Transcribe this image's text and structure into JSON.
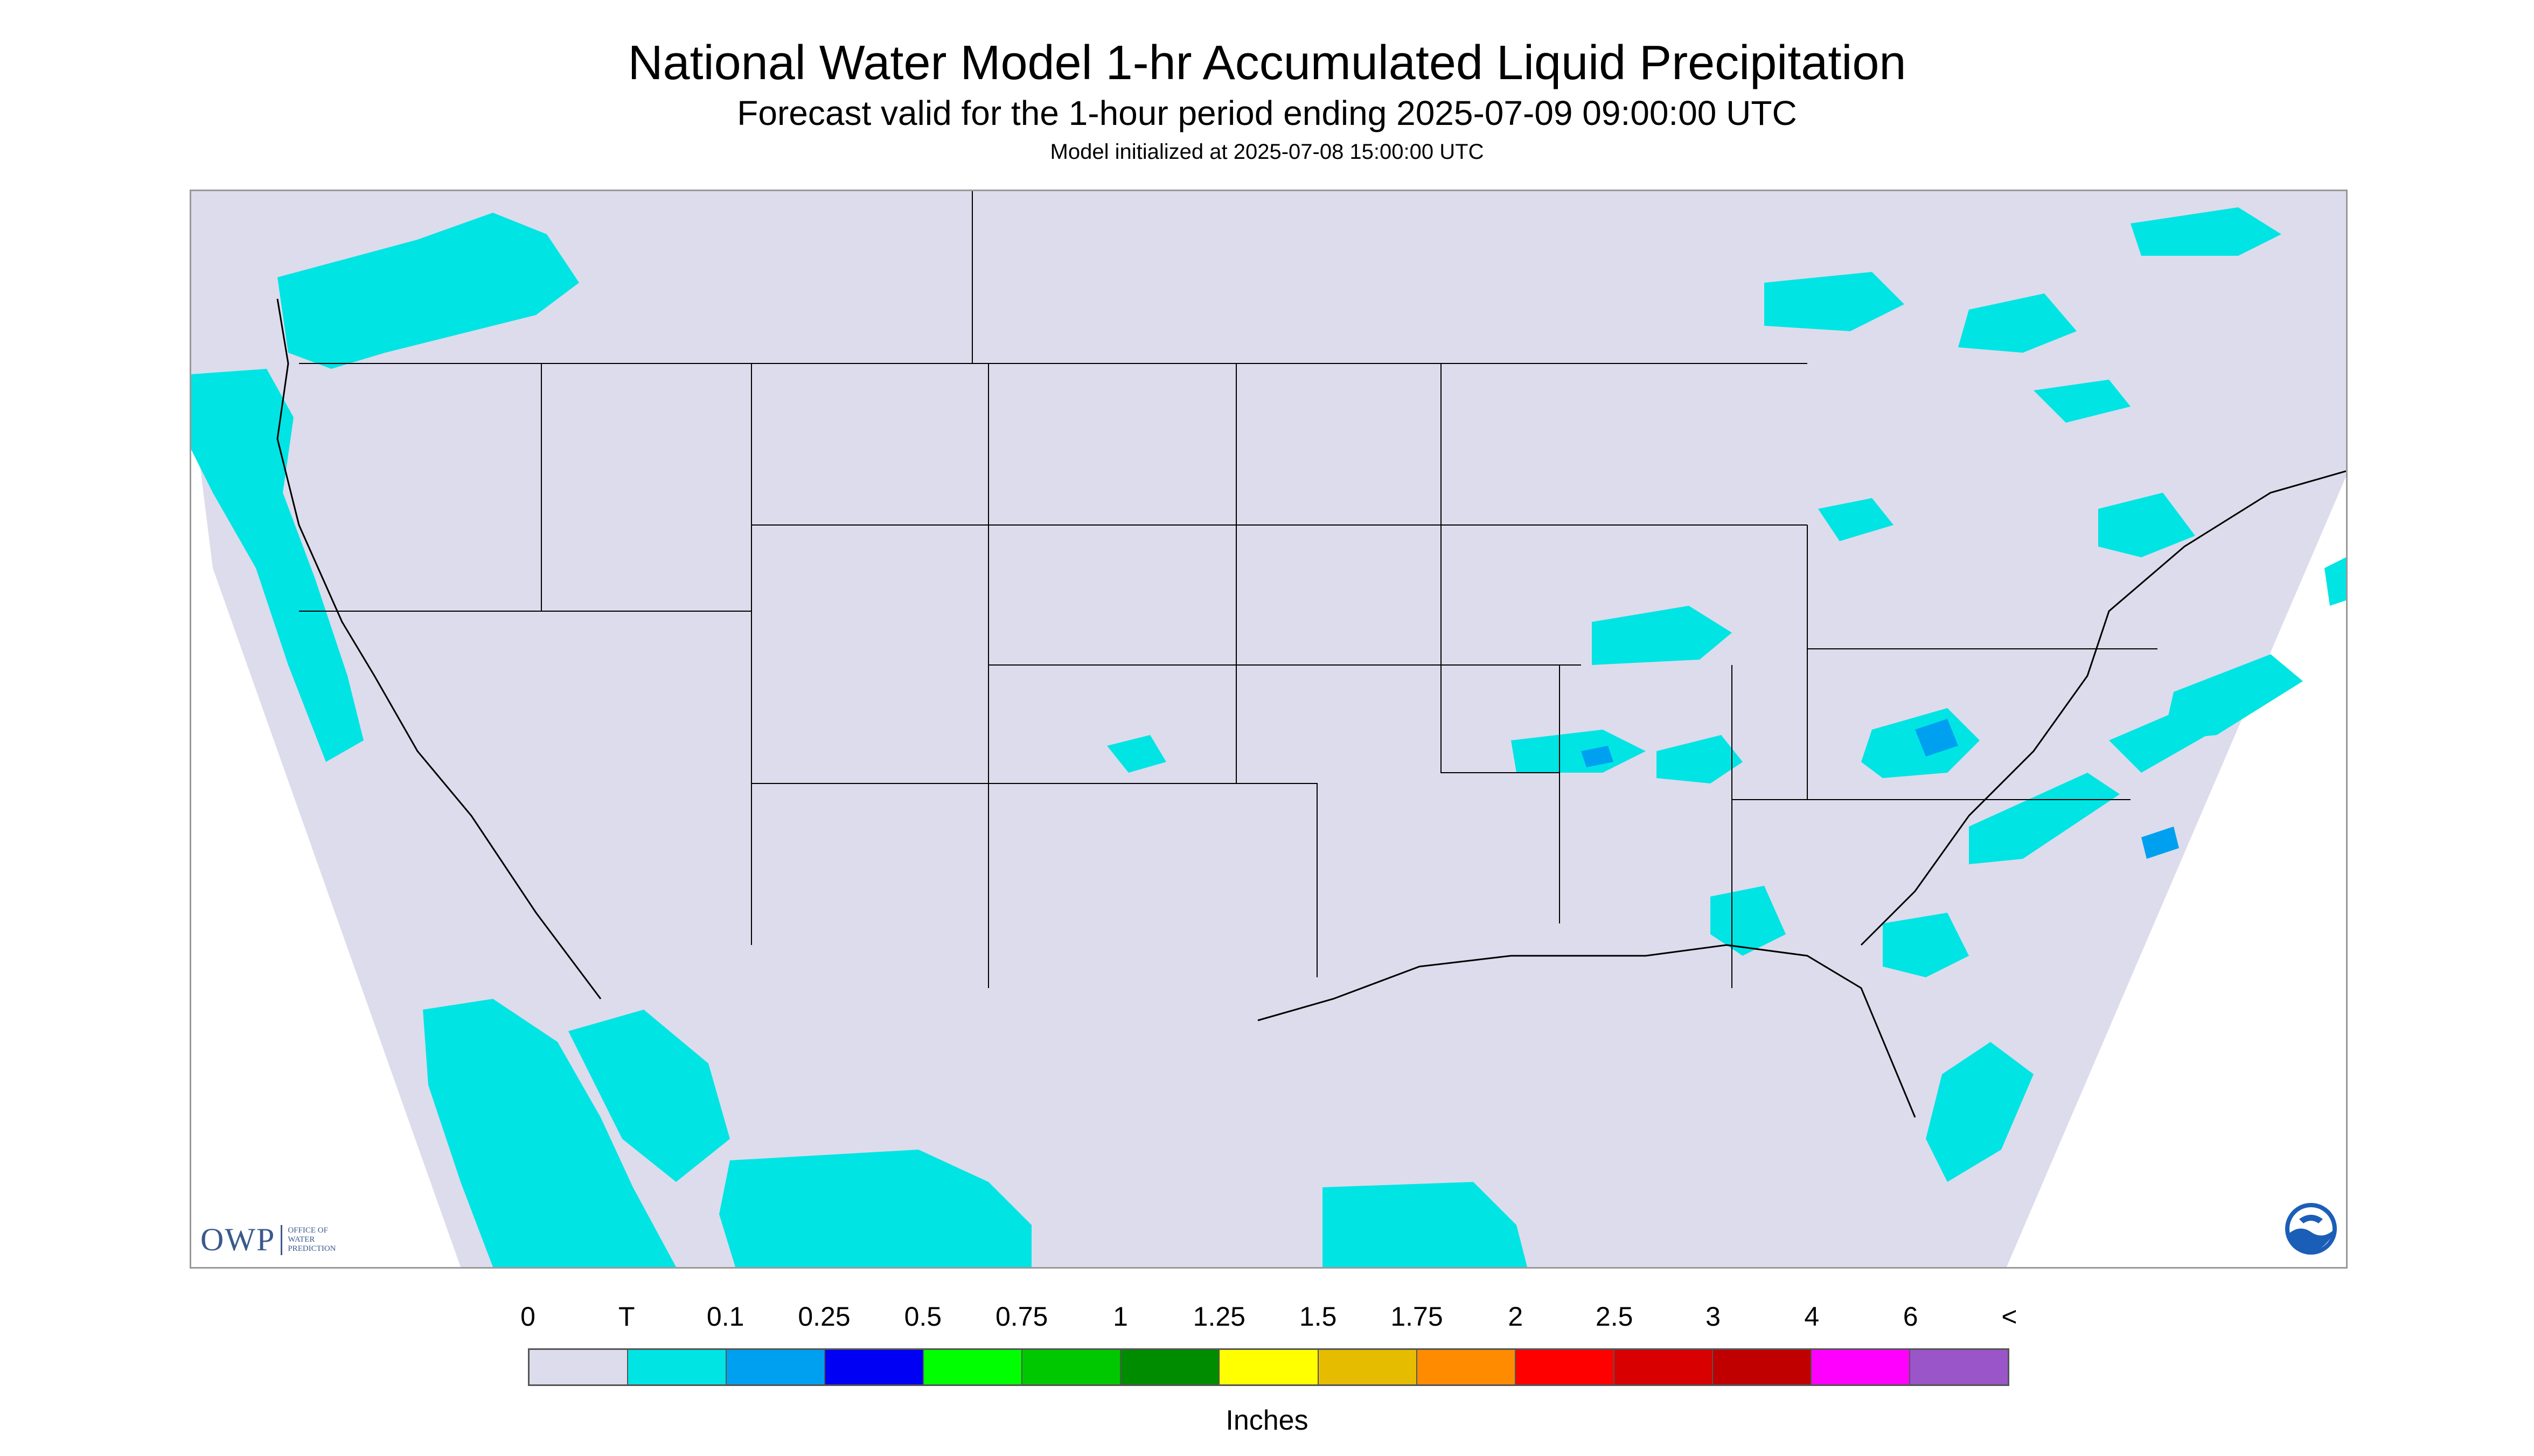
{
  "title": "National Water Model 1-hr Accumulated Liquid Precipitation",
  "subtitle": "Forecast valid for the 1-hour period ending 2025-07-09 09:00:00 UTC",
  "initialized": "Model initialized at 2025-07-08 15:00:00 UTC",
  "logo_owp": {
    "short": "OWP",
    "line1": "OFFICE OF",
    "line2": "WATER",
    "line3": "PREDICTION"
  },
  "colors": {
    "background_domain": "#dcdcec",
    "trace": "#00e4e4",
    "light": "#00a0f0",
    "boundary": "#000000"
  },
  "legend": {
    "units": "Inches",
    "labels": [
      "0",
      "T",
      "0.1",
      "0.25",
      "0.5",
      "0.75",
      "1",
      "1.25",
      "1.5",
      "1.75",
      "2",
      "2.5",
      "3",
      "4",
      "6",
      "<"
    ],
    "colors": [
      "#dcdcec",
      "#00e4e4",
      "#00a0f0",
      "#0000f4",
      "#00ff00",
      "#00c800",
      "#008c00",
      "#ffff00",
      "#e6bc00",
      "#ff8c00",
      "#ff0000",
      "#d80000",
      "#c00000",
      "#ff00ff",
      "#9a55c9"
    ]
  }
}
